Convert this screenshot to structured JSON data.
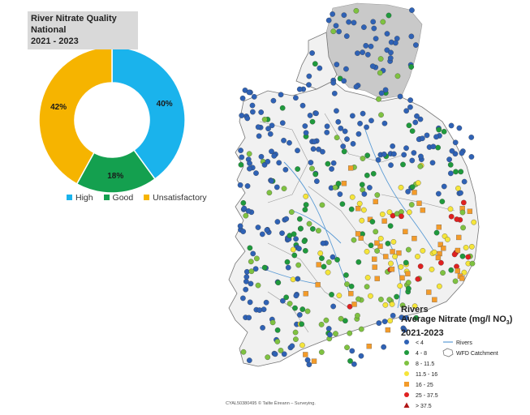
{
  "donut": {
    "title_line1": "River Nitrate Quality",
    "title_line2": "National",
    "title_line3": "2021 - 2023",
    "segments": [
      {
        "name": "High",
        "value": 40,
        "label": "40%",
        "color": "#1ab3ec"
      },
      {
        "name": "Good",
        "value": 18,
        "label": "18%",
        "color": "#14a04f"
      },
      {
        "name": "Unsatisfactory",
        "value": 42,
        "label": "42%",
        "color": "#f6b400"
      }
    ]
  },
  "map": {
    "legend": {
      "title1": "Rivers",
      "title2": "Average Nitrate (mg/l NO",
      "title2_sub": "3",
      "title2_end": ")",
      "title3": "2021-2023",
      "classes": [
        {
          "label": "< 4",
          "color": "#2f62b5",
          "shape": "circle"
        },
        {
          "label": "4 - 8",
          "color": "#1f9a3d",
          "shape": "circle"
        },
        {
          "label": "8 - 11.5",
          "color": "#7fc241",
          "shape": "circle"
        },
        {
          "label": "11.5 - 16",
          "color": "#f5e53a",
          "shape": "circle"
        },
        {
          "label": "16 - 25",
          "color": "#f39b2a",
          "shape": "square"
        },
        {
          "label": "25 - 37.5",
          "color": "#e02020",
          "shape": "circle"
        },
        {
          "label": "> 37.5",
          "color": "#b01515",
          "shape": "triangle"
        }
      ],
      "rivers_label": "Rivers",
      "catchment_label": "WFD Catchment"
    },
    "credit": "CYAL50380495 © Tailte Éireann – Surveying."
  }
}
